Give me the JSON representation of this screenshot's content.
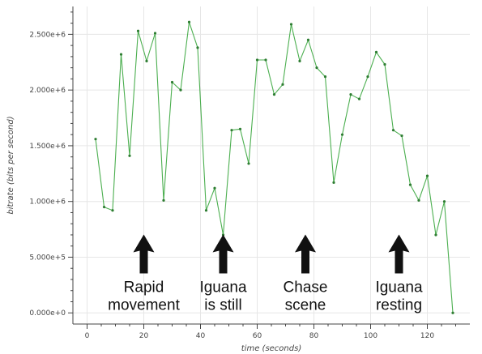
{
  "chart_data": {
    "type": "line",
    "title": "",
    "xlabel": "time (seconds)",
    "ylabel": "bitrate (bits per second)",
    "xlim": [
      -5,
      135
    ],
    "ylim": [
      -100000,
      2750000
    ],
    "x_ticks": [
      0,
      20,
      40,
      60,
      80,
      100,
      120
    ],
    "y_ticks": [
      0,
      500000,
      1000000,
      1500000,
      2000000,
      2500000
    ],
    "x_tick_labels": [
      "0",
      "20",
      "40",
      "60",
      "80",
      "100",
      "120"
    ],
    "y_tick_labels": [
      "0.000e+0",
      "5.000e+5",
      "1.000e+6",
      "1.500e+6",
      "2.000e+6",
      "2.500e+6"
    ],
    "grid": true,
    "color": "#4caf50",
    "series": [
      {
        "x": [
          3,
          6,
          9,
          12,
          15,
          18,
          21,
          24,
          27,
          30,
          33,
          36,
          39,
          42,
          45,
          48,
          51,
          54,
          57,
          60,
          63,
          66,
          69,
          72,
          75,
          78,
          81,
          84,
          87,
          90,
          93,
          96,
          99,
          102,
          105,
          108,
          111,
          114,
          117,
          120,
          123,
          126,
          129
        ],
        "values": [
          1560000,
          950000,
          920000,
          2320000,
          1410000,
          2530000,
          2260000,
          2510000,
          1010000,
          2070000,
          2000000,
          2610000,
          2380000,
          920000,
          1120000,
          700000,
          1640000,
          1650000,
          1340000,
          2270000,
          2270000,
          1960000,
          2050000,
          2590000,
          2260000,
          2450000,
          2200000,
          2120000,
          1170000,
          1600000,
          1960000,
          1920000,
          2120000,
          2340000,
          2230000,
          1640000,
          1590000,
          1150000,
          1010000,
          1230000,
          700000,
          1000000,
          0
        ]
      }
    ],
    "annotations": [
      {
        "lines": [
          "Rapid",
          "movement"
        ],
        "x": 20,
        "y": 500000
      },
      {
        "lines": [
          "Iguana",
          "is still"
        ],
        "x": 48,
        "y": 500000
      },
      {
        "lines": [
          "Chase",
          "scene"
        ],
        "x": 77,
        "y": 500000
      },
      {
        "lines": [
          "Iguana",
          "resting"
        ],
        "x": 110,
        "y": 500000
      }
    ]
  }
}
